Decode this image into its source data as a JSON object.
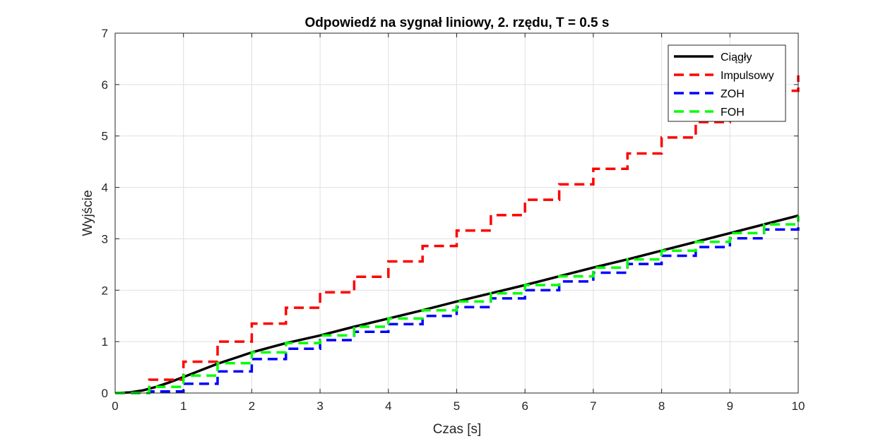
{
  "chart_data": {
    "type": "line",
    "title": "Odpowiedź na sygnał liniowy, 2. rzędu, T = 0.5 s",
    "xlabel": "Czas [s]",
    "ylabel": "Wyjście",
    "xlim": [
      0,
      10
    ],
    "ylim": [
      0,
      7
    ],
    "xticks": [
      "0",
      "1",
      "2",
      "3",
      "4",
      "5",
      "6",
      "7",
      "8",
      "9",
      "10"
    ],
    "yticks": [
      "0",
      "1",
      "2",
      "3",
      "4",
      "5",
      "6",
      "7"
    ],
    "grid": true,
    "legend_position": "top-right",
    "series": [
      {
        "name": "Ciągły",
        "style": "solid",
        "color": "#000000",
        "x": [
          0,
          0.2,
          0.4,
          0.6,
          0.8,
          1.0,
          1.25,
          1.5,
          1.75,
          2.0,
          2.5,
          3.0,
          3.5,
          4.0,
          4.5,
          5.0,
          5.5,
          6.0,
          6.5,
          7.0,
          7.5,
          8.0,
          8.5,
          9.0,
          9.5,
          10.0
        ],
        "y": [
          0,
          0.01,
          0.05,
          0.12,
          0.21,
          0.31,
          0.44,
          0.57,
          0.68,
          0.79,
          0.97,
          1.12,
          1.29,
          1.45,
          1.61,
          1.78,
          1.94,
          2.1,
          2.27,
          2.44,
          2.6,
          2.77,
          2.94,
          3.11,
          3.28,
          3.45
        ]
      },
      {
        "name": "Impulsowy",
        "style": "step-dashed",
        "color": "#ff0000",
        "x": [
          0,
          0.5,
          1.0,
          1.5,
          2.0,
          2.5,
          3.0,
          3.5,
          4.0,
          4.5,
          5.0,
          5.5,
          6.0,
          6.5,
          7.0,
          7.5,
          8.0,
          8.5,
          9.0,
          9.5,
          10.0
        ],
        "y": [
          0,
          0.26,
          0.61,
          1.0,
          1.35,
          1.66,
          1.96,
          2.26,
          2.56,
          2.86,
          3.16,
          3.46,
          3.76,
          4.06,
          4.36,
          4.66,
          4.97,
          5.27,
          5.57,
          5.88,
          6.18
        ]
      },
      {
        "name": "ZOH",
        "style": "step-dashed",
        "color": "#0000ff",
        "x": [
          0,
          0.5,
          1.0,
          1.5,
          2.0,
          2.5,
          3.0,
          3.5,
          4.0,
          4.5,
          5.0,
          5.5,
          6.0,
          6.5,
          7.0,
          7.5,
          8.0,
          8.5,
          9.0,
          9.5,
          10.0
        ],
        "y": [
          0,
          0.03,
          0.18,
          0.42,
          0.66,
          0.86,
          1.03,
          1.19,
          1.34,
          1.5,
          1.67,
          1.84,
          2.0,
          2.17,
          2.34,
          2.51,
          2.67,
          2.84,
          3.01,
          3.18,
          3.35
        ]
      },
      {
        "name": "FOH",
        "style": "step-dashed",
        "color": "#00ff00",
        "x": [
          0,
          0.5,
          1.0,
          1.5,
          2.0,
          2.5,
          3.0,
          3.5,
          4.0,
          4.5,
          5.0,
          5.5,
          6.0,
          6.5,
          7.0,
          7.5,
          8.0,
          8.5,
          9.0,
          9.5,
          10.0
        ],
        "y": [
          0,
          0.12,
          0.34,
          0.58,
          0.79,
          0.97,
          1.12,
          1.29,
          1.45,
          1.61,
          1.78,
          1.94,
          2.1,
          2.27,
          2.44,
          2.6,
          2.77,
          2.94,
          3.11,
          3.28,
          3.45
        ]
      }
    ]
  }
}
